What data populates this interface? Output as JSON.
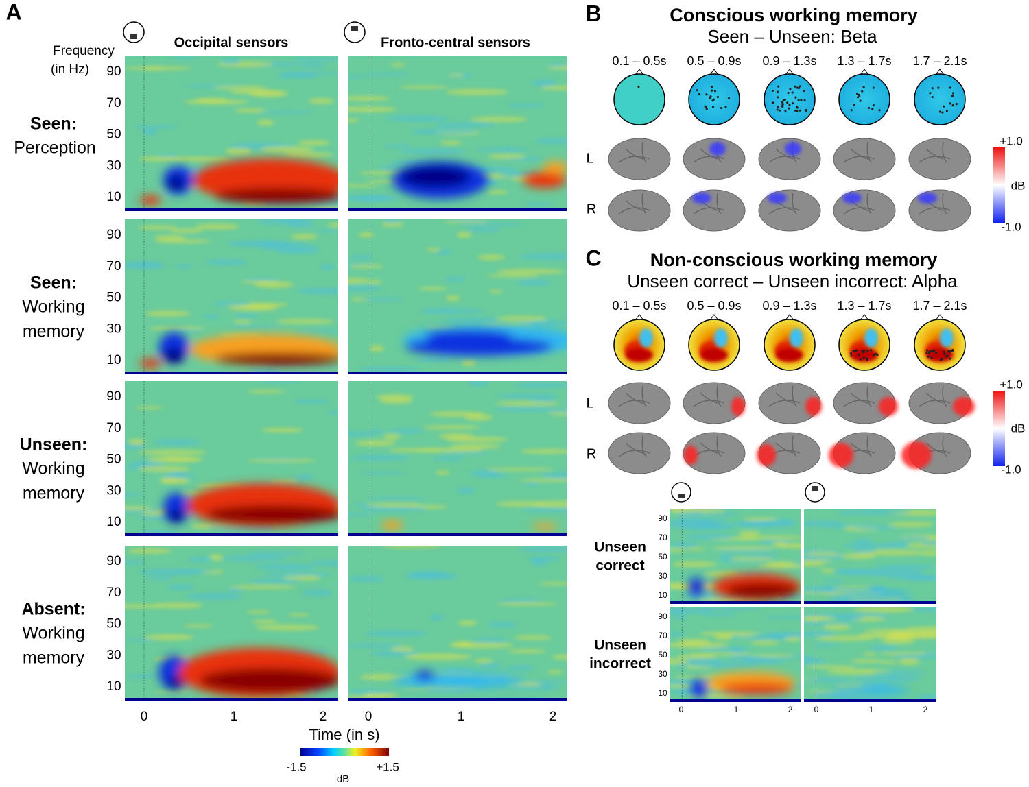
{
  "panel_a": {
    "label": "A",
    "y_axis_label": [
      "Frequency",
      "(in Hz)"
    ],
    "columns": [
      "Occipital sensors",
      "Fronto-central sensors"
    ],
    "rows": [
      {
        "title": "Seen:",
        "lines": [
          "Perception"
        ]
      },
      {
        "title": "Seen:",
        "lines": [
          "Working",
          "memory"
        ]
      },
      {
        "title": "Unseen:",
        "lines": [
          "Working",
          "memory"
        ]
      },
      {
        "title": "Absent:",
        "lines": [
          "Working",
          "memory"
        ]
      }
    ],
    "yticks": [
      90,
      70,
      50,
      30,
      10
    ],
    "xticks": [
      0,
      1,
      2
    ],
    "x_axis_label": "Time (in s)",
    "colorbar": {
      "min": "-1.5",
      "max": "+1.5",
      "unit": "dB"
    }
  },
  "panel_b": {
    "label": "B",
    "title": "Conscious working memory",
    "subtitle": "Seen – Unseen:  Beta",
    "windows": [
      "0.1 – 0.5s",
      "0.5 – 0.9s",
      "0.9 – 1.3s",
      "1.3 – 1.7s",
      "1.7 – 2.1s"
    ],
    "hemispheres": [
      "L",
      "R"
    ],
    "colorbar": {
      "max": "+1.0",
      "unit": "dB",
      "min": "-1.0"
    }
  },
  "panel_c": {
    "label": "C",
    "title": "Non-conscious working memory",
    "subtitle": "Unseen correct – Unseen incorrect:  Alpha",
    "windows": [
      "0.1 – 0.5s",
      "0.5 – 0.9s",
      "0.9 – 1.3s",
      "1.3 – 1.7s",
      "1.7 – 2.1s"
    ],
    "hemispheres": [
      "L",
      "R"
    ],
    "colorbar": {
      "max": "+1.0",
      "unit": "dB",
      "min": "-1.0"
    },
    "rows": [
      [
        "Unseen",
        "correct"
      ],
      [
        "Unseen",
        "incorrect"
      ]
    ],
    "yticks": [
      90,
      70,
      50,
      30,
      10
    ],
    "xticks": [
      0,
      1,
      2
    ]
  }
}
